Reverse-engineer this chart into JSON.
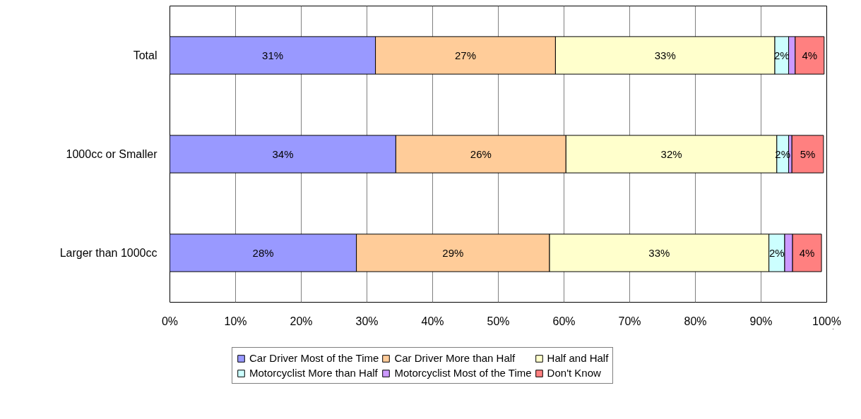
{
  "chart_data": {
    "type": "bar",
    "orientation": "horizontal",
    "stacked": true,
    "categories": [
      "Total",
      "1000cc or Smaller",
      "Larger than 1000cc"
    ],
    "series": [
      {
        "name": "Car Driver Most of the Time",
        "color": "#9999ff",
        "values": [
          31.3,
          34.4,
          28.4
        ],
        "value_labels": [
          "31%",
          "34%",
          "28%"
        ]
      },
      {
        "name": "Car Driver More than Half",
        "color": "#ffcc99",
        "values": [
          27.4,
          25.9,
          29.4
        ],
        "value_labels": [
          "27%",
          "26%",
          "29%"
        ]
      },
      {
        "name": "Half and Half",
        "color": "#ffffcc",
        "values": [
          33.4,
          32.1,
          33.4
        ],
        "value_labels": [
          "33%",
          "32%",
          "33%"
        ]
      },
      {
        "name": "Motorcyclist More than Half",
        "color": "#ccffff",
        "values": [
          2.1,
          1.8,
          2.4
        ],
        "value_labels": [
          "2%",
          "2%",
          "2%"
        ]
      },
      {
        "name": "Motorcyclist Most of the Time",
        "color": "#cc99ff",
        "values": [
          1.0,
          0.5,
          1.2
        ],
        "value_labels": [
          null,
          null,
          null
        ]
      },
      {
        "name": "Don't Know",
        "color": "#ff8080",
        "values": [
          4.4,
          4.8,
          4.4
        ],
        "value_labels": [
          "4%",
          "5%",
          "4%"
        ]
      }
    ],
    "xlim": [
      0,
      100
    ],
    "xticks": [
      {
        "value": 0,
        "label": "0%"
      },
      {
        "value": 10,
        "label": "10%"
      },
      {
        "value": 20,
        "label": "20%"
      },
      {
        "value": 30,
        "label": "30%"
      },
      {
        "value": 40,
        "label": "40%"
      },
      {
        "value": 50,
        "label": "50%"
      },
      {
        "value": 60,
        "label": "60%"
      },
      {
        "value": 70,
        "label": "70%"
      },
      {
        "value": 80,
        "label": "80%"
      },
      {
        "value": 90,
        "label": "90%"
      },
      {
        "value": 100,
        "label": "100%"
      }
    ],
    "grid": "x",
    "legend": "bottom"
  }
}
